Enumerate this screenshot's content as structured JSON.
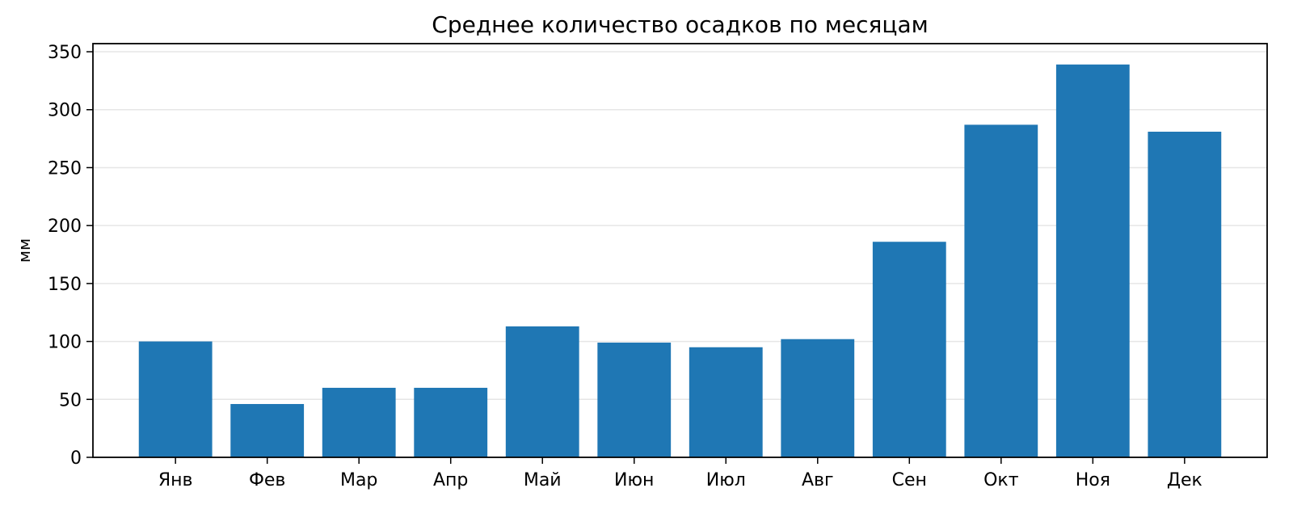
{
  "chart_data": {
    "type": "bar",
    "title": "Среднее количество осадков по месяцам",
    "xlabel": "",
    "ylabel": "мм",
    "categories": [
      "Янв",
      "Фев",
      "Мар",
      "Апр",
      "Май",
      "Июн",
      "Июл",
      "Авг",
      "Сен",
      "Окт",
      "Ноя",
      "Дек"
    ],
    "values": [
      100,
      46,
      60,
      60,
      113,
      99,
      95,
      102,
      186,
      287,
      339,
      281
    ],
    "ylim": [
      0,
      357
    ],
    "yticks": [
      0,
      50,
      100,
      150,
      200,
      250,
      300,
      350
    ],
    "grid": "y",
    "bar_color": "#1f77b4"
  }
}
